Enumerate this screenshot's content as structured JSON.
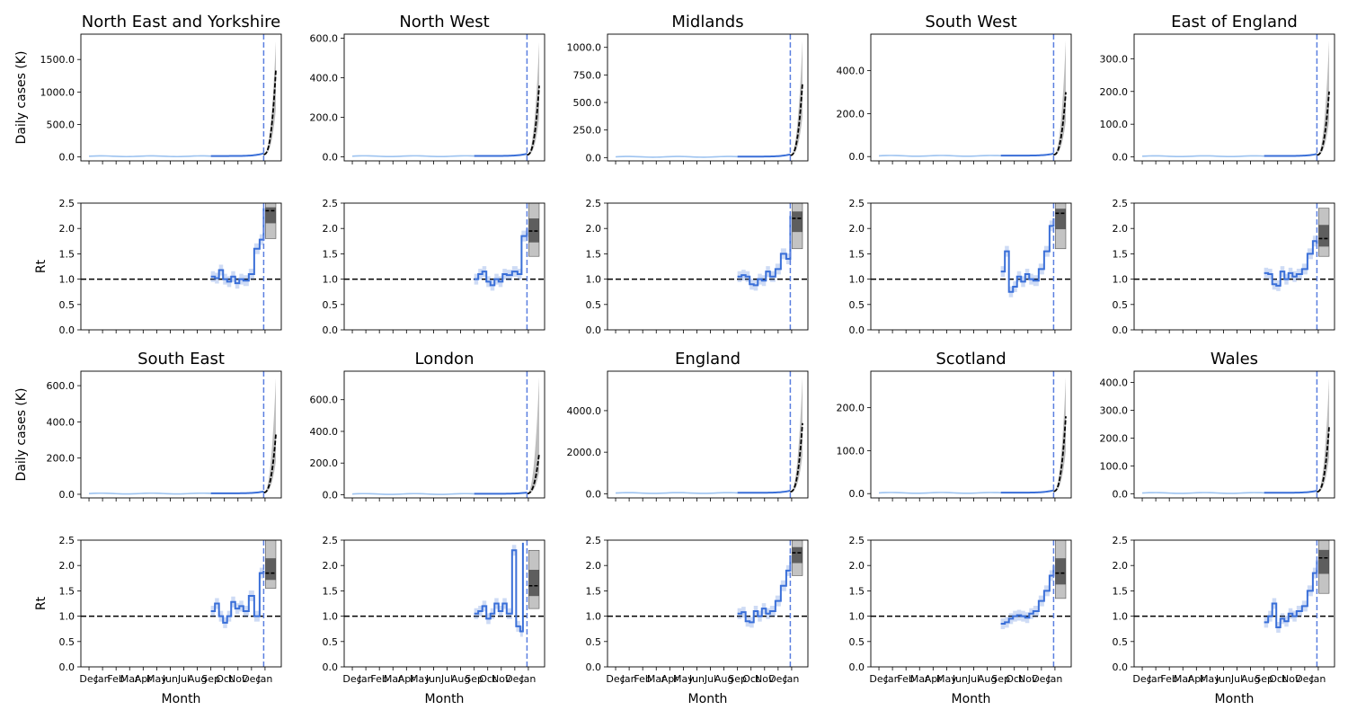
{
  "figure": {
    "ylabel_cases": "Daily cases (K)",
    "ylabel_rt": "Rt",
    "xlabel": "Month",
    "month_ticks": [
      "Dec",
      "Jan",
      "Feb",
      "Mar",
      "Apr",
      "May",
      "Jun",
      "Jul",
      "Aug",
      "Sep",
      "Oct",
      "Nov",
      "Dec",
      "Jan"
    ],
    "colors": {
      "history": "#9dc3f0",
      "fit": "#3a6fd8",
      "projection": "#000000",
      "projection_band": "#888888",
      "vline": "#5b7fe0",
      "rt_threshold": "#000000"
    }
  },
  "chart_data": [
    {
      "type": "line",
      "title": "North East and Yorkshire",
      "cases": {
        "ylim": [
          -60,
          1890
        ],
        "yticks": [
          "0.0",
          "500.0",
          "1000.0",
          "1500.0"
        ],
        "ytick_values": [
          0,
          500,
          1000,
          1500
        ],
        "proj_end_mid": 1340,
        "proj_end_high": 1780
      },
      "rt": {
        "ylim": [
          0,
          2.5
        ],
        "yticks": [
          "0.0",
          "0.5",
          "1.0",
          "1.5",
          "2.0",
          "2.5"
        ],
        "ytick_values": [
          0,
          0.5,
          1,
          1.5,
          2,
          2.5
        ],
        "fit": [
          [
            9.0,
            1.05
          ],
          [
            9.3,
            1.02
          ],
          [
            9.6,
            1.18
          ],
          [
            9.9,
            1.0
          ],
          [
            10.2,
            0.95
          ],
          [
            10.5,
            1.05
          ],
          [
            10.8,
            0.92
          ],
          [
            11.1,
            1.0
          ],
          [
            11.4,
            0.97
          ],
          [
            11.8,
            1.1
          ],
          [
            12.2,
            1.6
          ],
          [
            12.6,
            1.78
          ],
          [
            12.9,
            2.4
          ]
        ],
        "projection": {
          "low": 1.8,
          "mid": 2.35,
          "high": 2.5
        },
        "threshold": 1.0
      }
    },
    {
      "type": "line",
      "title": "North West",
      "cases": {
        "ylim": [
          -20,
          620
        ],
        "yticks": [
          "0.0",
          "200.0",
          "400.0",
          "600.0"
        ],
        "ytick_values": [
          0,
          200,
          400,
          600
        ],
        "proj_end_mid": 360,
        "proj_end_high": 580
      },
      "rt": {
        "ylim": [
          0,
          2.5
        ],
        "yticks": [
          "0.0",
          "0.5",
          "1.0",
          "1.5",
          "2.0",
          "2.5"
        ],
        "ytick_values": [
          0,
          0.5,
          1,
          1.5,
          2,
          2.5
        ],
        "fit": [
          [
            9.0,
            1.0
          ],
          [
            9.3,
            1.1
          ],
          [
            9.6,
            1.15
          ],
          [
            9.9,
            0.95
          ],
          [
            10.2,
            0.88
          ],
          [
            10.5,
            1.0
          ],
          [
            10.8,
            0.95
          ],
          [
            11.1,
            1.1
          ],
          [
            11.4,
            1.08
          ],
          [
            11.8,
            1.15
          ],
          [
            12.2,
            1.1
          ],
          [
            12.5,
            1.85
          ],
          [
            12.9,
            2.0
          ]
        ],
        "projection": {
          "low": 1.45,
          "mid": 1.95,
          "high": 2.5
        },
        "threshold": 1.0
      }
    },
    {
      "type": "line",
      "title": "Midlands",
      "cases": {
        "ylim": [
          -30,
          1120
        ],
        "yticks": [
          "0.0",
          "250.0",
          "500.0",
          "750.0",
          "1000.0"
        ],
        "ytick_values": [
          0,
          250,
          500,
          750,
          1000
        ],
        "proj_end_mid": 680,
        "proj_end_high": 1060
      },
      "rt": {
        "ylim": [
          0,
          2.5
        ],
        "yticks": [
          "0.0",
          "0.5",
          "1.0",
          "1.5",
          "2.0",
          "2.5"
        ],
        "ytick_values": [
          0,
          0.5,
          1,
          1.5,
          2,
          2.5
        ],
        "fit": [
          [
            9.0,
            1.05
          ],
          [
            9.3,
            1.08
          ],
          [
            9.6,
            1.05
          ],
          [
            9.9,
            0.9
          ],
          [
            10.2,
            0.88
          ],
          [
            10.5,
            1.0
          ],
          [
            10.8,
            0.97
          ],
          [
            11.1,
            1.15
          ],
          [
            11.4,
            1.05
          ],
          [
            11.8,
            1.2
          ],
          [
            12.2,
            1.5
          ],
          [
            12.6,
            1.4
          ],
          [
            12.9,
            2.25
          ]
        ],
        "projection": {
          "low": 1.6,
          "mid": 2.2,
          "high": 2.5
        },
        "threshold": 1.0
      }
    },
    {
      "type": "line",
      "title": "South West",
      "cases": {
        "ylim": [
          -20,
          570
        ],
        "yticks": [
          "0.0",
          "200.0",
          "400.0"
        ],
        "ytick_values": [
          0,
          200,
          400
        ],
        "proj_end_mid": 300,
        "proj_end_high": 540
      },
      "rt": {
        "ylim": [
          0,
          2.5
        ],
        "yticks": [
          "0.0",
          "0.5",
          "1.0",
          "1.5",
          "2.0",
          "2.5"
        ],
        "ytick_values": [
          0,
          0.5,
          1,
          1.5,
          2,
          2.5
        ],
        "fit": [
          [
            9.0,
            1.15
          ],
          [
            9.3,
            1.55
          ],
          [
            9.6,
            0.75
          ],
          [
            9.9,
            0.85
          ],
          [
            10.2,
            1.05
          ],
          [
            10.5,
            0.95
          ],
          [
            10.8,
            1.1
          ],
          [
            11.1,
            1.0
          ],
          [
            11.4,
            0.97
          ],
          [
            11.8,
            1.2
          ],
          [
            12.2,
            1.55
          ],
          [
            12.6,
            2.05
          ],
          [
            12.9,
            2.2
          ]
        ],
        "projection": {
          "low": 1.6,
          "mid": 2.3,
          "high": 2.5
        },
        "threshold": 1.0
      }
    },
    {
      "type": "line",
      "title": "East of England",
      "cases": {
        "ylim": [
          -12,
          375
        ],
        "yticks": [
          "0.0",
          "100.0",
          "200.0",
          "300.0"
        ],
        "ytick_values": [
          0,
          100,
          200,
          300
        ],
        "proj_end_mid": 200,
        "proj_end_high": 355
      },
      "rt": {
        "ylim": [
          0,
          2.5
        ],
        "yticks": [
          "0.0",
          "0.5",
          "1.0",
          "1.5",
          "2.0",
          "2.5"
        ],
        "ytick_values": [
          0,
          0.5,
          1,
          1.5,
          2,
          2.5
        ],
        "fit": [
          [
            9.0,
            1.12
          ],
          [
            9.3,
            1.1
          ],
          [
            9.6,
            0.9
          ],
          [
            9.9,
            0.87
          ],
          [
            10.2,
            1.15
          ],
          [
            10.5,
            1.0
          ],
          [
            10.8,
            1.12
          ],
          [
            11.1,
            1.05
          ],
          [
            11.4,
            1.1
          ],
          [
            11.8,
            1.2
          ],
          [
            12.2,
            1.5
          ],
          [
            12.6,
            1.75
          ],
          [
            12.9,
            1.7
          ]
        ],
        "projection": {
          "low": 1.45,
          "mid": 1.8,
          "high": 2.4
        },
        "threshold": 1.0
      }
    },
    {
      "type": "line",
      "title": "South East",
      "cases": {
        "ylim": [
          -20,
          680
        ],
        "yticks": [
          "0.0",
          "200.0",
          "400.0",
          "600.0"
        ],
        "ytick_values": [
          0,
          200,
          400,
          600
        ],
        "proj_end_mid": 330,
        "proj_end_high": 640
      },
      "rt": {
        "ylim": [
          0,
          2.5
        ],
        "yticks": [
          "0.0",
          "0.5",
          "1.0",
          "1.5",
          "2.0",
          "2.5"
        ],
        "ytick_values": [
          0,
          0.5,
          1,
          1.5,
          2,
          2.5
        ],
        "fit": [
          [
            9.0,
            1.1
          ],
          [
            9.3,
            1.25
          ],
          [
            9.6,
            1.0
          ],
          [
            9.9,
            0.87
          ],
          [
            10.2,
            1.0
          ],
          [
            10.5,
            1.28
          ],
          [
            10.8,
            1.15
          ],
          [
            11.1,
            1.2
          ],
          [
            11.4,
            1.1
          ],
          [
            11.8,
            1.4
          ],
          [
            12.2,
            1.0
          ],
          [
            12.6,
            1.85
          ],
          [
            12.9,
            1.9
          ]
        ],
        "projection": {
          "low": 1.55,
          "mid": 1.85,
          "high": 2.5
        },
        "threshold": 1.0
      }
    },
    {
      "type": "line",
      "title": "London",
      "cases": {
        "ylim": [
          -20,
          780
        ],
        "yticks": [
          "0.0",
          "200.0",
          "400.0",
          "600.0"
        ],
        "ytick_values": [
          0,
          200,
          400,
          600
        ],
        "proj_end_mid": 260,
        "proj_end_high": 740
      },
      "rt": {
        "ylim": [
          0,
          2.5
        ],
        "yticks": [
          "0.0",
          "0.5",
          "1.0",
          "1.5",
          "2.0",
          "2.5"
        ],
        "ytick_values": [
          0,
          0.5,
          1,
          1.5,
          2,
          2.5
        ],
        "fit": [
          [
            9.0,
            1.05
          ],
          [
            9.3,
            1.1
          ],
          [
            9.6,
            1.2
          ],
          [
            9.9,
            0.95
          ],
          [
            10.2,
            1.05
          ],
          [
            10.5,
            1.25
          ],
          [
            10.8,
            1.1
          ],
          [
            11.1,
            1.25
          ],
          [
            11.4,
            1.05
          ],
          [
            11.8,
            2.3
          ],
          [
            12.1,
            0.8
          ],
          [
            12.4,
            0.7
          ],
          [
            12.6,
            2.45
          ]
        ],
        "projection": {
          "low": 1.15,
          "mid": 1.6,
          "high": 2.3
        },
        "threshold": 1.0
      }
    },
    {
      "type": "line",
      "title": "England",
      "cases": {
        "ylim": [
          -200,
          5900
        ],
        "yticks": [
          "0.0",
          "2000.0",
          "4000.0"
        ],
        "ytick_values": [
          0,
          2000,
          4000
        ],
        "proj_end_mid": 3400,
        "proj_end_high": 5600
      },
      "rt": {
        "ylim": [
          0,
          2.5
        ],
        "yticks": [
          "0.0",
          "0.5",
          "1.0",
          "1.5",
          "2.0",
          "2.5"
        ],
        "ytick_values": [
          0,
          0.5,
          1,
          1.5,
          2,
          2.5
        ],
        "fit": [
          [
            9.0,
            1.05
          ],
          [
            9.3,
            1.08
          ],
          [
            9.6,
            0.9
          ],
          [
            9.9,
            0.88
          ],
          [
            10.2,
            1.1
          ],
          [
            10.5,
            1.0
          ],
          [
            10.8,
            1.15
          ],
          [
            11.1,
            1.05
          ],
          [
            11.4,
            1.1
          ],
          [
            11.8,
            1.3
          ],
          [
            12.2,
            1.6
          ],
          [
            12.6,
            1.9
          ],
          [
            12.9,
            2.2
          ]
        ],
        "projection": {
          "low": 1.8,
          "mid": 2.25,
          "high": 2.5
        },
        "threshold": 1.0
      }
    },
    {
      "type": "line",
      "title": "Scotland",
      "cases": {
        "ylim": [
          -10,
          285
        ],
        "yticks": [
          "0.0",
          "100.0",
          "200.0"
        ],
        "ytick_values": [
          0,
          100,
          200
        ],
        "proj_end_mid": 180,
        "proj_end_high": 270
      },
      "rt": {
        "ylim": [
          0,
          2.5
        ],
        "yticks": [
          "0.0",
          "0.5",
          "1.0",
          "1.5",
          "2.0",
          "2.5"
        ],
        "ytick_values": [
          0,
          0.5,
          1,
          1.5,
          2,
          2.5
        ],
        "fit": [
          [
            9.0,
            0.85
          ],
          [
            9.3,
            0.88
          ],
          [
            9.6,
            0.95
          ],
          [
            9.9,
            1.0
          ],
          [
            10.2,
            1.02
          ],
          [
            10.5,
            1.0
          ],
          [
            10.8,
            0.97
          ],
          [
            11.1,
            1.05
          ],
          [
            11.4,
            1.1
          ],
          [
            11.8,
            1.3
          ],
          [
            12.2,
            1.5
          ],
          [
            12.6,
            1.8
          ],
          [
            12.9,
            2.0
          ]
        ],
        "projection": {
          "low": 1.35,
          "mid": 1.85,
          "high": 2.5
        },
        "threshold": 1.0
      }
    },
    {
      "type": "line",
      "title": "Wales",
      "cases": {
        "ylim": [
          -15,
          440
        ],
        "yticks": [
          "0.0",
          "100.0",
          "200.0",
          "300.0",
          "400.0"
        ],
        "ytick_values": [
          0,
          100,
          200,
          300,
          400
        ],
        "proj_end_mid": 240,
        "proj_end_high": 415
      },
      "rt": {
        "ylim": [
          0,
          2.5
        ],
        "yticks": [
          "0.0",
          "0.5",
          "1.0",
          "1.5",
          "2.0",
          "2.5"
        ],
        "ytick_values": [
          0,
          0.5,
          1,
          1.5,
          2,
          2.5
        ],
        "fit": [
          [
            9.0,
            0.88
          ],
          [
            9.3,
            1.0
          ],
          [
            9.6,
            1.25
          ],
          [
            9.9,
            0.78
          ],
          [
            10.2,
            0.95
          ],
          [
            10.5,
            0.9
          ],
          [
            10.8,
            1.05
          ],
          [
            11.1,
            1.0
          ],
          [
            11.4,
            1.1
          ],
          [
            11.8,
            1.2
          ],
          [
            12.2,
            1.5
          ],
          [
            12.6,
            1.85
          ],
          [
            12.9,
            2.1
          ]
        ],
        "projection": {
          "low": 1.45,
          "mid": 2.15,
          "high": 2.5
        },
        "threshold": 1.0
      }
    }
  ]
}
